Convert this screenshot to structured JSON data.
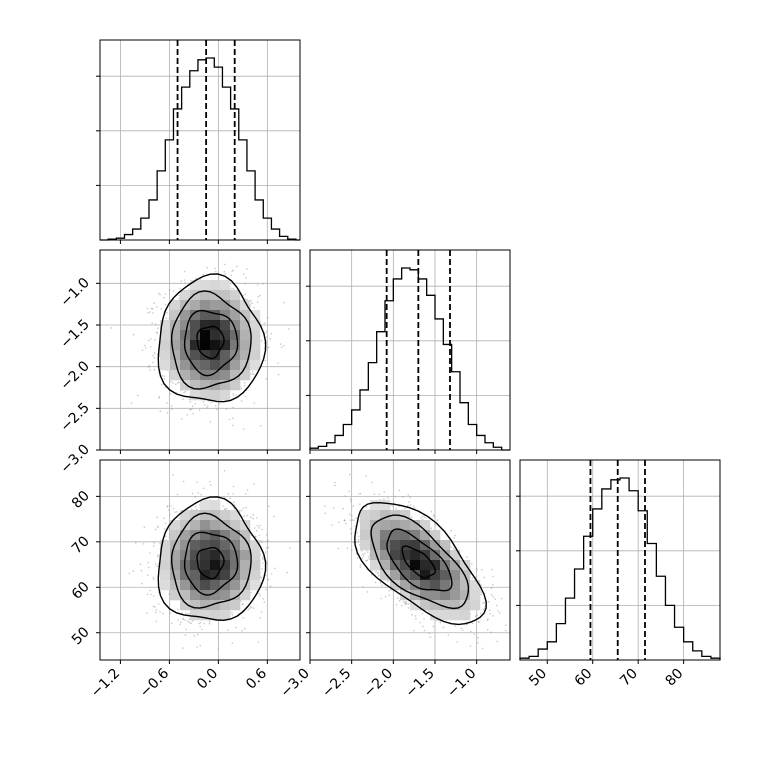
{
  "chart_data": [
    {
      "panel": "hist-x0",
      "type": "histogram",
      "param": "x0",
      "xlim": [
        -1.45,
        1.0
      ],
      "bins": [
        {
          "x": -1.3,
          "y": 0.005
        },
        {
          "x": -1.2,
          "y": 0.01
        },
        {
          "x": -1.1,
          "y": 0.03
        },
        {
          "x": -1.0,
          "y": 0.06
        },
        {
          "x": -0.9,
          "y": 0.12
        },
        {
          "x": -0.8,
          "y": 0.22
        },
        {
          "x": -0.7,
          "y": 0.38
        },
        {
          "x": -0.6,
          "y": 0.55
        },
        {
          "x": -0.5,
          "y": 0.72
        },
        {
          "x": -0.4,
          "y": 0.84
        },
        {
          "x": -0.3,
          "y": 0.93
        },
        {
          "x": -0.2,
          "y": 0.99
        },
        {
          "x": -0.1,
          "y": 1.0
        },
        {
          "x": 0.0,
          "y": 0.95
        },
        {
          "x": 0.1,
          "y": 0.84
        },
        {
          "x": 0.2,
          "y": 0.72
        },
        {
          "x": 0.3,
          "y": 0.55
        },
        {
          "x": 0.4,
          "y": 0.38
        },
        {
          "x": 0.5,
          "y": 0.22
        },
        {
          "x": 0.6,
          "y": 0.12
        },
        {
          "x": 0.7,
          "y": 0.06
        },
        {
          "x": 0.8,
          "y": 0.02
        },
        {
          "x": 0.9,
          "y": 0.005
        }
      ],
      "quantiles": [
        -0.5,
        -0.15,
        0.2
      ]
    },
    {
      "panel": "hist-x1",
      "type": "histogram",
      "param": "x1",
      "xlim": [
        -3.0,
        -0.6
      ],
      "bins": [
        {
          "x": -2.95,
          "y": 0.01
        },
        {
          "x": -2.85,
          "y": 0.02
        },
        {
          "x": -2.75,
          "y": 0.04
        },
        {
          "x": -2.65,
          "y": 0.08
        },
        {
          "x": -2.55,
          "y": 0.14
        },
        {
          "x": -2.45,
          "y": 0.22
        },
        {
          "x": -2.35,
          "y": 0.33
        },
        {
          "x": -2.25,
          "y": 0.48
        },
        {
          "x": -2.15,
          "y": 0.65
        },
        {
          "x": -2.05,
          "y": 0.82
        },
        {
          "x": -1.95,
          "y": 0.94
        },
        {
          "x": -1.85,
          "y": 1.0
        },
        {
          "x": -1.75,
          "y": 0.99
        },
        {
          "x": -1.65,
          "y": 0.94
        },
        {
          "x": -1.55,
          "y": 0.85
        },
        {
          "x": -1.45,
          "y": 0.72
        },
        {
          "x": -1.35,
          "y": 0.58
        },
        {
          "x": -1.25,
          "y": 0.43
        },
        {
          "x": -1.15,
          "y": 0.26
        },
        {
          "x": -1.05,
          "y": 0.14
        },
        {
          "x": -0.95,
          "y": 0.08
        },
        {
          "x": -0.85,
          "y": 0.04
        },
        {
          "x": -0.75,
          "y": 0.015
        }
      ],
      "quantiles": [
        -2.08,
        -1.7,
        -1.32
      ]
    },
    {
      "panel": "hist-x2",
      "type": "histogram",
      "param": "x2",
      "xlim": [
        44,
        88
      ],
      "bins": [
        {
          "x": 45,
          "y": 0.01
        },
        {
          "x": 47,
          "y": 0.02
        },
        {
          "x": 49,
          "y": 0.06
        },
        {
          "x": 51,
          "y": 0.1
        },
        {
          "x": 53,
          "y": 0.2
        },
        {
          "x": 55,
          "y": 0.34
        },
        {
          "x": 57,
          "y": 0.5
        },
        {
          "x": 59,
          "y": 0.68
        },
        {
          "x": 61,
          "y": 0.83
        },
        {
          "x": 63,
          "y": 0.94
        },
        {
          "x": 65,
          "y": 0.99
        },
        {
          "x": 67,
          "y": 1.0
        },
        {
          "x": 69,
          "y": 0.93
        },
        {
          "x": 71,
          "y": 0.82
        },
        {
          "x": 73,
          "y": 0.64
        },
        {
          "x": 75,
          "y": 0.46
        },
        {
          "x": 77,
          "y": 0.3
        },
        {
          "x": 79,
          "y": 0.18
        },
        {
          "x": 81,
          "y": 0.1
        },
        {
          "x": 83,
          "y": 0.05
        },
        {
          "x": 85,
          "y": 0.02
        },
        {
          "x": 87,
          "y": 0.01
        }
      ],
      "quantiles": [
        59.5,
        65.5,
        71.5
      ]
    },
    {
      "panel": "scatter-x0-x1",
      "type": "scatter",
      "xparam": "x0",
      "yparam": "x1",
      "xlim": [
        -1.45,
        1.0
      ],
      "ylim": [
        -3.0,
        -0.6
      ],
      "center": [
        -0.1,
        -1.7
      ],
      "sd": [
        0.3,
        0.35
      ],
      "rho": 0.0,
      "contour_levels_sigma": [
        0.5,
        1.0,
        1.5,
        2.0
      ]
    },
    {
      "panel": "scatter-x0-x2",
      "type": "scatter",
      "xparam": "x0",
      "yparam": "x2",
      "xlim": [
        -1.45,
        1.0
      ],
      "ylim": [
        44,
        88
      ],
      "center": [
        -0.1,
        65.5
      ],
      "sd": [
        0.3,
        6.2
      ],
      "rho": 0.0,
      "contour_levels_sigma": [
        0.5,
        1.0,
        1.5,
        2.0
      ]
    },
    {
      "panel": "scatter-x1-x2",
      "type": "scatter",
      "xparam": "x1",
      "yparam": "x2",
      "xlim": [
        -3.0,
        -0.6
      ],
      "ylim": [
        44,
        88
      ],
      "center": [
        -1.7,
        65.5
      ],
      "sd": [
        0.36,
        6.2
      ],
      "rho": -0.62,
      "contour_levels_sigma": [
        0.5,
        1.0,
        1.5,
        2.0
      ]
    }
  ],
  "ticks": {
    "x0": [
      {
        "v": -1.2,
        "label": "−1.2"
      },
      {
        "v": -0.6,
        "label": "−0.6"
      },
      {
        "v": 0.0,
        "label": "0.0"
      },
      {
        "v": 0.6,
        "label": "0.6"
      }
    ],
    "x1_y": [
      {
        "v": -1.0,
        "label": "−1.0"
      },
      {
        "v": -1.5,
        "label": "−1.5"
      },
      {
        "v": -2.0,
        "label": "−2.0"
      },
      {
        "v": -2.5,
        "label": "−2.5"
      },
      {
        "v": -3.0,
        "label": "−3.0"
      }
    ],
    "x1_x": [
      {
        "v": -3.0,
        "label": "−3.0"
      },
      {
        "v": -2.5,
        "label": "−2.5"
      },
      {
        "v": -2.0,
        "label": "−2.0"
      },
      {
        "v": -1.5,
        "label": "−1.5"
      },
      {
        "v": -1.0,
        "label": "−1.0"
      }
    ],
    "x2_y": [
      {
        "v": 80,
        "label": "80"
      },
      {
        "v": 70,
        "label": "70"
      },
      {
        "v": 60,
        "label": "60"
      },
      {
        "v": 50,
        "label": "50"
      }
    ],
    "x2_x": [
      {
        "v": 50,
        "label": "50"
      },
      {
        "v": 60,
        "label": "60"
      },
      {
        "v": 70,
        "label": "70"
      },
      {
        "v": 80,
        "label": "80"
      }
    ]
  },
  "colors": {
    "background": "#ffffff",
    "line": "#000000",
    "grid": "#b0b0b0",
    "points": "#9a9a9a"
  }
}
